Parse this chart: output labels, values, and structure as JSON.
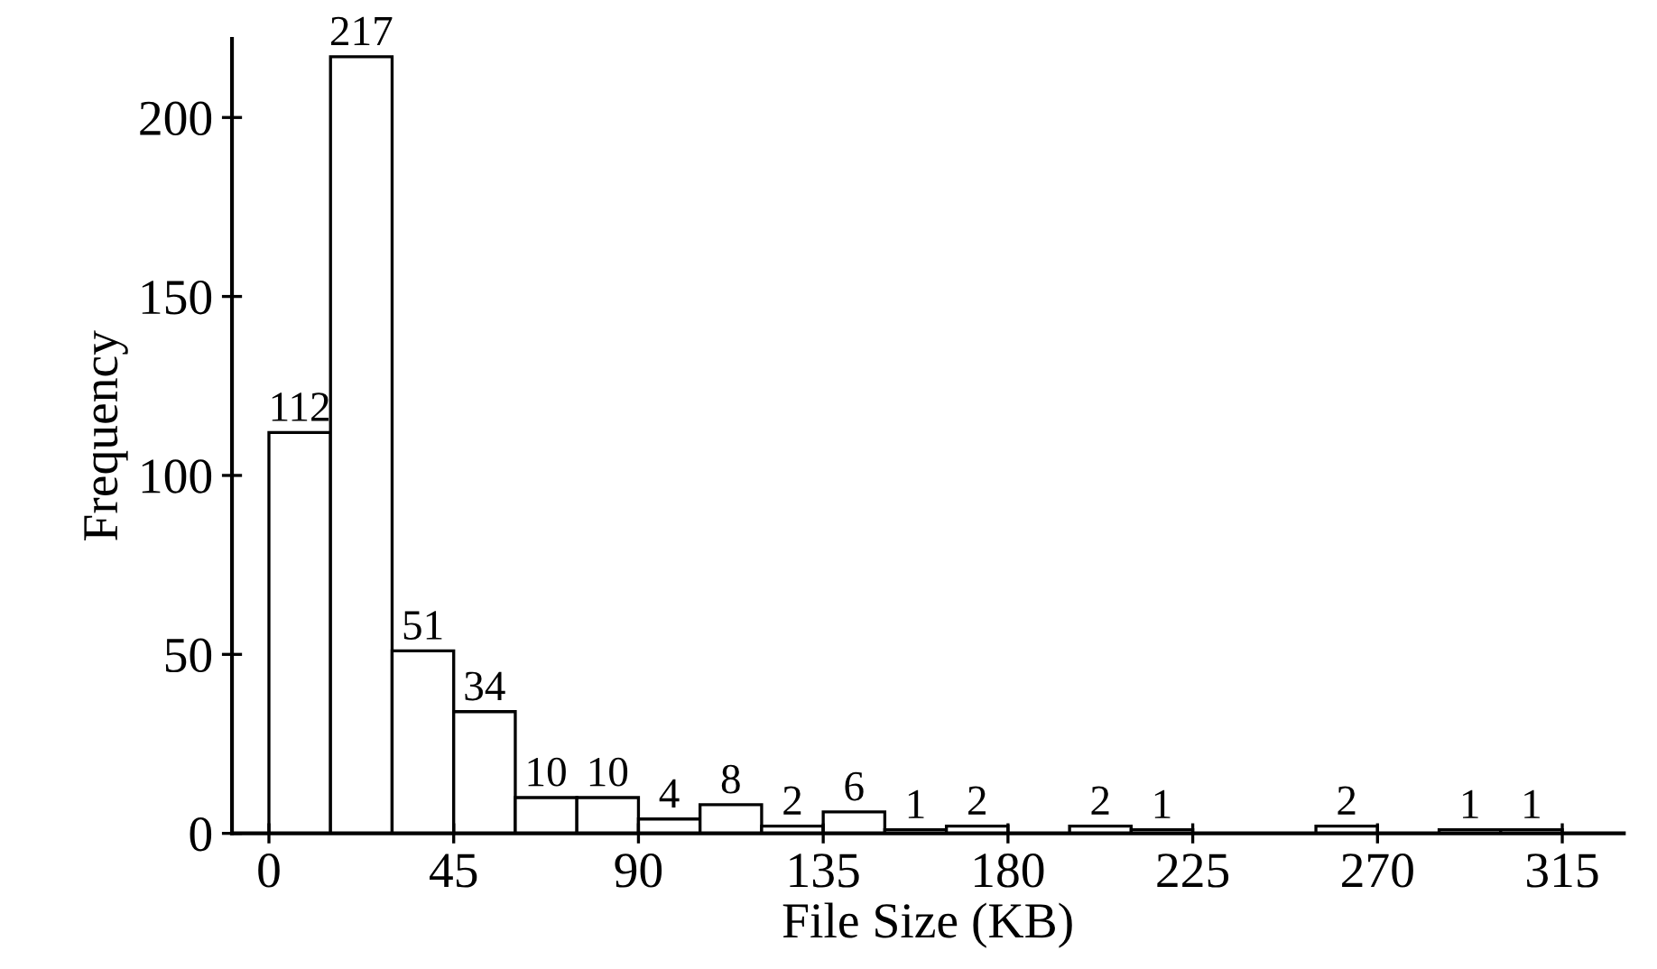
{
  "chart_data": {
    "type": "histogram",
    "xlabel": "File Size (KB)",
    "ylabel": "Frequency",
    "bins": [
      0,
      15,
      30,
      45,
      60,
      75,
      90,
      105,
      120,
      135,
      150,
      165,
      180,
      195,
      210,
      225,
      240,
      255,
      270,
      285,
      300,
      315
    ],
    "values": [
      112,
      217,
      51,
      34,
      10,
      10,
      4,
      8,
      2,
      6,
      1,
      2,
      0,
      2,
      1,
      0,
      0,
      2,
      0,
      1,
      1
    ],
    "value_labels": [
      "112",
      "217",
      "51",
      "34",
      "10",
      "10",
      "4",
      "8",
      "2",
      "6",
      "1",
      "2",
      null,
      "2",
      "1",
      null,
      null,
      "2",
      null,
      "1",
      "1"
    ],
    "color": "#ffffff",
    "xlim": [
      -9,
      330
    ],
    "xticks": [
      0,
      45,
      90,
      135,
      180,
      225,
      270,
      315
    ],
    "ylim": [
      0,
      222
    ],
    "yticks": [
      0,
      50,
      100,
      150,
      200
    ],
    "grid": false
  }
}
